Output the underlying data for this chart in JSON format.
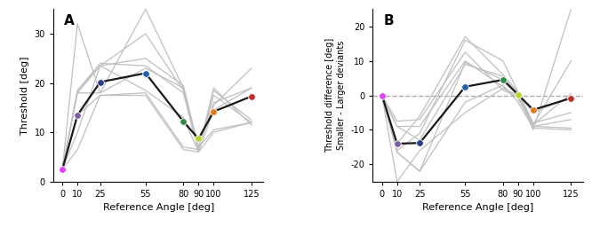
{
  "x_vals": [
    0,
    10,
    25,
    55,
    80,
    90,
    100,
    125
  ],
  "mean_A": [
    2.5,
    13.5,
    20.2,
    22.0,
    12.2,
    8.7,
    14.2,
    17.3
  ],
  "mean_B": [
    0.0,
    -14.0,
    -13.8,
    2.5,
    4.5,
    0.2,
    -4.2,
    -0.8
  ],
  "dot_colors": [
    "#e040fb",
    "#7b5ea7",
    "#253f8a",
    "#2060b0",
    "#2e8b44",
    "#b8d42e",
    "#e07b1a",
    "#c0302a"
  ],
  "participants_A": [
    [
      2.5,
      32.0,
      18.0,
      35.0,
      19.0,
      7.0,
      10.5,
      12.0
    ],
    [
      2.5,
      18.5,
      23.5,
      30.0,
      18.5,
      7.0,
      15.5,
      23.0
    ],
    [
      2.5,
      18.0,
      23.5,
      25.0,
      19.5,
      7.0,
      16.0,
      19.0
    ],
    [
      2.5,
      18.0,
      18.0,
      23.0,
      19.0,
      6.5,
      17.5,
      12.0
    ],
    [
      2.5,
      18.5,
      24.0,
      23.5,
      18.0,
      6.0,
      14.5,
      19.0
    ],
    [
      2.5,
      13.5,
      17.5,
      18.0,
      7.0,
      6.5,
      18.5,
      12.5
    ],
    [
      2.5,
      10.0,
      23.5,
      18.5,
      13.0,
      6.0,
      10.0,
      12.0
    ],
    [
      2.5,
      6.5,
      17.5,
      17.5,
      6.5,
      6.0,
      19.0,
      11.5
    ]
  ],
  "participants_B": [
    [
      0.0,
      -25.0,
      -16.0,
      -5.0,
      2.0,
      0.0,
      -10.0,
      25.0
    ],
    [
      0.0,
      -16.5,
      -22.0,
      -2.0,
      3.0,
      -2.0,
      -9.5,
      -10.0
    ],
    [
      0.0,
      -16.5,
      -22.0,
      9.5,
      4.5,
      0.5,
      -8.5,
      10.0
    ],
    [
      0.0,
      -16.0,
      -11.0,
      16.0,
      10.0,
      1.0,
      -8.0,
      -5.0
    ],
    [
      0.0,
      -14.0,
      -6.0,
      17.0,
      6.0,
      1.0,
      -9.0,
      -7.0
    ],
    [
      0.0,
      -9.0,
      -13.0,
      9.0,
      5.5,
      0.5,
      -5.0,
      -0.5
    ],
    [
      0.0,
      -9.0,
      -9.0,
      10.0,
      2.5,
      -1.0,
      -8.5,
      0.5
    ],
    [
      0.0,
      -7.5,
      -7.0,
      12.5,
      1.5,
      -0.5,
      -9.0,
      -9.5
    ]
  ],
  "ylabel_A": "Threshold [deg]",
  "ylabel_B": "Threshold difference [deg]\nSmaller - Larger deviants",
  "xlabel": "Reference Angle [deg]",
  "ylim_A": [
    0,
    35
  ],
  "ylim_B": [
    -25,
    25
  ],
  "yticks_A": [
    0,
    10,
    20,
    30
  ],
  "yticks_B": [
    -20,
    -10,
    0,
    10,
    20
  ],
  "label_A": "A",
  "label_B": "B",
  "grey_color": "#c0c0c0",
  "mean_line_color": "#1a1a1a",
  "dashed_line_color": "#aaaaaa",
  "bg_color": "#ffffff"
}
